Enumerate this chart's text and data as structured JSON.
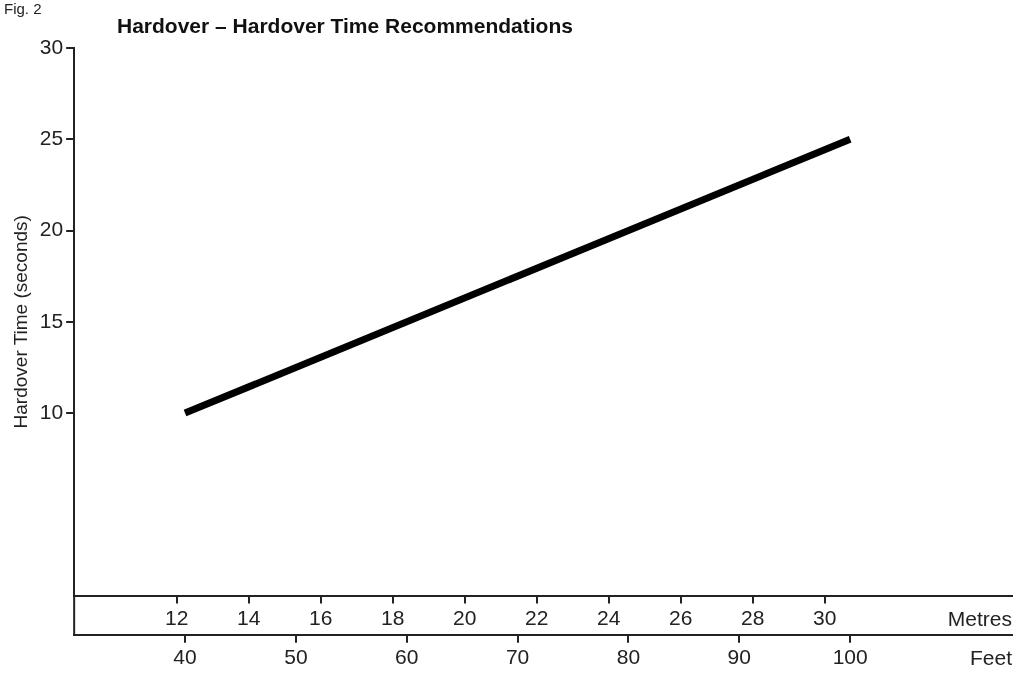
{
  "chart_data": {
    "type": "line",
    "title": "Hardover – Hardover Time Recommendations",
    "ylabel": "Hardover Time (seconds)",
    "xlabel": "Feet",
    "x2label": "Metres",
    "annotations": [
      "Fig. 2"
    ],
    "series": [
      {
        "x": [
          40,
          100
        ],
        "values": [
          10,
          25
        ],
        "color": "#000000"
      }
    ],
    "xlim": [
      30,
      114.6
    ],
    "xticks": [
      40,
      50,
      60,
      70,
      80,
      90,
      100
    ],
    "x2lim": [
      9.15,
      35.2
    ],
    "x2ticks": [
      12,
      14,
      16,
      18,
      20,
      22,
      24,
      26,
      28,
      30
    ],
    "ylim": [
      0,
      30
    ],
    "yticks": [
      10,
      15,
      20,
      25,
      30
    ],
    "marker": "none"
  }
}
